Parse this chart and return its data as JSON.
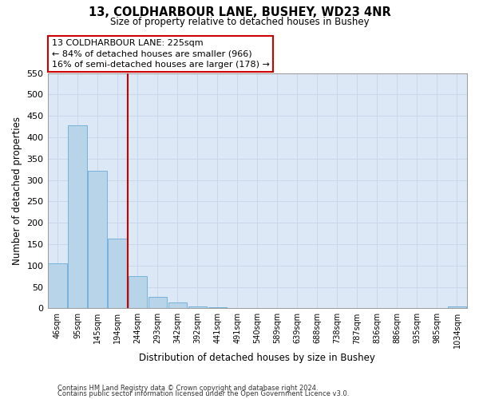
{
  "title": "13, COLDHARBOUR LANE, BUSHEY, WD23 4NR",
  "subtitle": "Size of property relative to detached houses in Bushey",
  "xlabel": "Distribution of detached houses by size in Bushey",
  "ylabel": "Number of detached properties",
  "footnote1": "Contains HM Land Registry data © Crown copyright and database right 2024.",
  "footnote2": "Contains public sector information licensed under the Open Government Licence v3.0.",
  "bin_labels": [
    "46sqm",
    "95sqm",
    "145sqm",
    "194sqm",
    "244sqm",
    "293sqm",
    "342sqm",
    "392sqm",
    "441sqm",
    "491sqm",
    "540sqm",
    "589sqm",
    "639sqm",
    "688sqm",
    "738sqm",
    "787sqm",
    "836sqm",
    "886sqm",
    "935sqm",
    "985sqm",
    "1034sqm"
  ],
  "bar_heights": [
    105,
    428,
    322,
    163,
    75,
    27,
    14,
    5,
    2,
    0,
    0,
    0,
    0,
    0,
    0,
    0,
    0,
    0,
    0,
    0,
    4
  ],
  "bar_color": "#b8d4e8",
  "bar_edge_color": "#6aaad8",
  "vline_color": "#cc0000",
  "annotation_text": "13 COLDHARBOUR LANE: 225sqm\n← 84% of detached houses are smaller (966)\n16% of semi-detached houses are larger (178) →",
  "annotation_box_color": "#ffffff",
  "annotation_box_edge": "#cc0000",
  "ylim": [
    0,
    550
  ],
  "yticks": [
    0,
    50,
    100,
    150,
    200,
    250,
    300,
    350,
    400,
    450,
    500,
    550
  ],
  "grid_color": "#c8d8ea",
  "background_color": "#dce8f5"
}
